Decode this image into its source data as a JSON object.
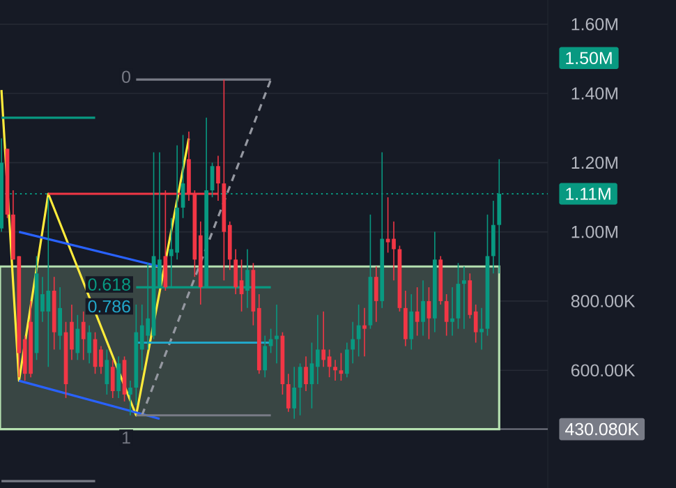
{
  "chart_data": {
    "type": "candlestick",
    "categories": [
      null,
      null,
      null,
      null,
      null,
      null,
      null,
      null,
      null,
      null,
      null,
      null,
      null,
      null,
      null,
      null,
      null,
      null,
      null,
      null,
      null,
      null,
      null,
      null,
      null,
      null,
      null,
      null,
      null,
      null,
      null,
      null,
      null,
      null,
      null,
      null,
      null,
      null,
      null,
      null,
      null,
      null,
      null,
      null,
      null,
      null,
      null,
      null,
      null,
      null,
      null,
      null,
      null,
      null,
      null,
      null,
      null,
      null,
      null,
      null,
      null,
      null,
      null,
      null,
      null,
      null,
      null,
      null,
      null,
      null,
      null,
      null,
      null,
      null,
      null,
      null,
      null,
      null,
      null,
      null,
      null,
      null,
      null,
      null,
      null,
      null
    ],
    "ohlc": [
      [
        1010000,
        1270000,
        1000000,
        1200000
      ],
      [
        1240000,
        1240000,
        1040000,
        1050000
      ],
      [
        1050000,
        1120000,
        920000,
        920000
      ],
      [
        930000,
        930000,
        580000,
        650000
      ],
      [
        690000,
        700000,
        570000,
        590000
      ],
      [
        740000,
        800000,
        580000,
        590000
      ],
      [
        650000,
        930000,
        630000,
        880000
      ],
      [
        770000,
        870000,
        740000,
        820000
      ],
      [
        770000,
        1100000,
        610000,
        830000
      ],
      [
        830000,
        870000,
        660000,
        710000
      ],
      [
        700000,
        840000,
        660000,
        780000
      ],
      [
        710000,
        740000,
        520000,
        560000
      ],
      [
        740000,
        790000,
        630000,
        660000
      ],
      [
        650000,
        760000,
        630000,
        720000
      ],
      [
        740000,
        770000,
        630000,
        690000
      ],
      [
        650000,
        730000,
        620000,
        710000
      ],
      [
        690000,
        710000,
        590000,
        610000
      ],
      [
        660000,
        670000,
        590000,
        610000
      ],
      [
        560000,
        660000,
        530000,
        630000
      ],
      [
        610000,
        630000,
        520000,
        540000
      ],
      [
        540000,
        640000,
        520000,
        620000
      ],
      [
        630000,
        640000,
        510000,
        530000
      ],
      [
        530000,
        570000,
        470000,
        550000
      ],
      [
        550000,
        790000,
        500000,
        710000
      ],
      [
        660000,
        790000,
        600000,
        730000
      ],
      [
        700000,
        910000,
        660000,
        750000
      ],
      [
        700000,
        1230000,
        690000,
        930000
      ],
      [
        840000,
        1230000,
        840000,
        920000
      ],
      [
        930000,
        1120000,
        830000,
        840000
      ],
      [
        930000,
        1040000,
        840000,
        950000
      ],
      [
        940000,
        1250000,
        920000,
        1070000
      ],
      [
        1070000,
        1280000,
        1040000,
        1140000
      ],
      [
        1210000,
        1290000,
        1090000,
        1110000
      ],
      [
        1110000,
        1120000,
        870000,
        920000
      ],
      [
        990000,
        1030000,
        790000,
        840000
      ],
      [
        840000,
        1330000,
        840000,
        1120000
      ],
      [
        1120000,
        1200000,
        1100000,
        1190000
      ],
      [
        1190000,
        1220000,
        1090000,
        1140000
      ],
      [
        1140000,
        1440000,
        860000,
        1000000
      ],
      [
        1020000,
        1030000,
        890000,
        920000
      ],
      [
        920000,
        950000,
        820000,
        840000
      ],
      [
        860000,
        920000,
        770000,
        820000
      ],
      [
        830000,
        950000,
        780000,
        890000
      ],
      [
        890000,
        910000,
        730000,
        770000
      ],
      [
        780000,
        820000,
        590000,
        600000
      ],
      [
        600000,
        700000,
        580000,
        670000
      ],
      [
        670000,
        720000,
        650000,
        690000
      ],
      [
        690000,
        790000,
        620000,
        700000
      ],
      [
        700000,
        710000,
        530000,
        560000
      ],
      [
        560000,
        590000,
        480000,
        490000
      ],
      [
        490000,
        610000,
        460000,
        550000
      ],
      [
        550000,
        620000,
        470000,
        610000
      ],
      [
        610000,
        640000,
        540000,
        560000
      ],
      [
        560000,
        680000,
        490000,
        620000
      ],
      [
        610000,
        760000,
        560000,
        660000
      ],
      [
        660000,
        770000,
        610000,
        630000
      ],
      [
        640000,
        660000,
        580000,
        610000
      ],
      [
        610000,
        630000,
        570000,
        600000
      ],
      [
        600000,
        650000,
        570000,
        590000
      ],
      [
        590000,
        680000,
        580000,
        660000
      ],
      [
        660000,
        740000,
        620000,
        690000
      ],
      [
        690000,
        790000,
        640000,
        730000
      ],
      [
        730000,
        780000,
        640000,
        720000
      ],
      [
        730000,
        1050000,
        720000,
        870000
      ],
      [
        870000,
        900000,
        740000,
        800000
      ],
      [
        800000,
        1230000,
        780000,
        980000
      ],
      [
        980000,
        1100000,
        940000,
        970000
      ],
      [
        980000,
        1030000,
        860000,
        950000
      ],
      [
        950000,
        960000,
        770000,
        780000
      ],
      [
        780000,
        830000,
        670000,
        690000
      ],
      [
        690000,
        820000,
        660000,
        770000
      ],
      [
        770000,
        840000,
        700000,
        740000
      ],
      [
        740000,
        860000,
        700000,
        800000
      ],
      [
        800000,
        840000,
        690000,
        750000
      ],
      [
        750000,
        1000000,
        710000,
        920000
      ],
      [
        920000,
        930000,
        790000,
        800000
      ],
      [
        800000,
        820000,
        700000,
        740000
      ],
      [
        740000,
        840000,
        700000,
        750000
      ],
      [
        750000,
        910000,
        720000,
        850000
      ],
      [
        850000,
        900000,
        720000,
        860000
      ],
      [
        860000,
        880000,
        750000,
        760000
      ],
      [
        770000,
        790000,
        680000,
        710000
      ],
      [
        710000,
        780000,
        660000,
        720000
      ],
      [
        720000,
        1050000,
        700000,
        930000
      ],
      [
        930000,
        1090000,
        880000,
        1020000
      ],
      [
        1020000,
        1210000,
        880000,
        1110000
      ]
    ],
    "colors": [
      "#089981",
      "#f23645",
      "#f23645",
      "#f23645",
      "#f23645",
      "#f23645",
      "#089981",
      "#089981",
      "#089981",
      "#f23645",
      "#089981",
      "#f23645",
      "#f23645",
      "#089981",
      "#f23645",
      "#089981",
      "#f23645",
      "#f23645",
      "#089981",
      "#f23645",
      "#089981",
      "#f23645",
      "#089981",
      "#089981",
      "#089981",
      "#089981",
      "#089981",
      "#089981",
      "#f23645",
      "#089981",
      "#089981",
      "#089981",
      "#f23645",
      "#f23645",
      "#f23645",
      "#089981",
      "#089981",
      "#f23645",
      "#f23645",
      "#f23645",
      "#f23645",
      "#f23645",
      "#089981",
      "#f23645",
      "#f23645",
      "#089981",
      "#089981",
      "#089981",
      "#f23645",
      "#f23645",
      "#089981",
      "#089981",
      "#f23645",
      "#089981",
      "#089981",
      "#f23645",
      "#f23645",
      "#f23645",
      "#f23645",
      "#089981",
      "#089981",
      "#089981",
      "#f23645",
      "#089981",
      "#f23645",
      "#089981",
      "#f23645",
      "#f23645",
      "#f23645",
      "#f23645",
      "#089981",
      "#f23645",
      "#089981",
      "#f23645",
      "#089981",
      "#f23645",
      "#f23645",
      "#089981",
      "#089981",
      "#089981",
      "#f23645",
      "#f23645",
      "#089981",
      "#089981",
      "#089981",
      "#089981"
    ],
    "series": [
      {
        "type": "line",
        "color": "#ffeb3b",
        "values": [
          1410000,
          null,
          null,
          570000,
          null,
          null,
          null,
          null,
          1110000,
          null,
          null,
          null,
          null,
          null,
          null,
          null,
          null,
          null,
          null,
          null,
          null,
          null,
          null,
          470000,
          null,
          null,
          null,
          null,
          null,
          null,
          null,
          null,
          1270000,
          null,
          null,
          null,
          null,
          null,
          null,
          null,
          null,
          null,
          null,
          null,
          null,
          null,
          null,
          null,
          null,
          null,
          null,
          null,
          null,
          null,
          null,
          null,
          null,
          null,
          null,
          null,
          null,
          null,
          null,
          null,
          null,
          null,
          null,
          null,
          null,
          null,
          null,
          null,
          null,
          null,
          null,
          null,
          null,
          null,
          null,
          null,
          null,
          null,
          null,
          null,
          null,
          null
        ]
      },
      {
        "type": "line",
        "color": "#2962ff",
        "values": [
          null,
          null,
          null,
          1000000,
          null,
          null,
          null,
          null,
          null,
          null,
          null,
          null,
          null,
          null,
          null,
          null,
          null,
          null,
          null,
          null,
          null,
          null,
          null,
          null,
          null,
          null,
          null,
          900000,
          null,
          null,
          null,
          null,
          null,
          null,
          null,
          null,
          null,
          null,
          null,
          null,
          null,
          null,
          null,
          null,
          null,
          null,
          null,
          null,
          null,
          null,
          null,
          null,
          null,
          null,
          null,
          null,
          null,
          null,
          null,
          null,
          null,
          null,
          null,
          null,
          null,
          null,
          null,
          null,
          null,
          null,
          null,
          null,
          null,
          null,
          null,
          null,
          null,
          null,
          null,
          null,
          null,
          null,
          null,
          null,
          null,
          null
        ]
      },
      {
        "type": "line",
        "color": "#2962ff",
        "values": [
          null,
          null,
          null,
          570000,
          null,
          null,
          null,
          null,
          null,
          null,
          null,
          null,
          null,
          null,
          null,
          null,
          null,
          null,
          null,
          null,
          null,
          null,
          null,
          null,
          null,
          null,
          null,
          460000,
          null,
          null,
          null,
          null,
          null,
          null,
          null,
          null,
          null,
          null,
          null,
          null,
          null,
          null,
          null,
          null,
          null,
          null,
          null,
          null,
          null,
          null,
          null,
          null,
          null,
          null,
          null,
          null,
          null,
          null,
          null,
          null,
          null,
          null,
          null,
          null,
          null,
          null,
          null,
          null,
          null,
          null,
          null,
          null,
          null,
          null,
          null,
          null,
          null,
          null,
          null,
          null,
          null,
          null,
          null,
          null,
          null,
          null
        ]
      },
      {
        "type": "line",
        "color": "#f23645",
        "values": [
          null,
          null,
          null,
          null,
          null,
          null,
          null,
          null,
          1110000,
          null,
          null,
          null,
          null,
          null,
          null,
          null,
          null,
          null,
          null,
          null,
          null,
          null,
          null,
          null,
          null,
          null,
          null,
          null,
          null,
          null,
          null,
          null,
          null,
          null,
          null,
          null,
          null,
          1110000,
          null,
          null,
          null,
          null,
          null,
          null,
          null,
          null,
          null,
          null,
          null,
          null,
          null,
          null,
          null,
          null,
          null,
          null,
          null,
          null,
          null,
          null,
          null,
          null,
          null,
          null,
          null,
          null,
          null,
          null,
          null,
          null,
          null,
          null,
          null,
          null,
          null,
          null,
          null,
          null,
          null,
          null,
          null,
          null,
          null,
          null,
          null,
          null
        ]
      },
      {
        "type": "line",
        "color": "#9598a1",
        "line_style": "dashed",
        "values": [
          null,
          null,
          null,
          null,
          null,
          null,
          null,
          null,
          null,
          null,
          null,
          null,
          null,
          null,
          null,
          null,
          null,
          null,
          null,
          null,
          null,
          null,
          null,
          null,
          470000,
          null,
          null,
          null,
          null,
          null,
          null,
          null,
          null,
          null,
          null,
          null,
          null,
          null,
          null,
          null,
          null,
          null,
          null,
          null,
          null,
          null,
          1440000,
          null,
          null,
          null,
          null,
          null,
          null,
          null,
          null,
          null,
          null,
          null,
          null,
          null,
          null,
          null,
          null,
          null,
          null,
          null,
          null,
          null,
          null,
          null,
          null,
          null,
          null,
          null,
          null,
          null,
          null,
          null,
          null,
          null,
          null,
          null,
          null,
          null,
          null,
          null
        ]
      },
      {
        "type": "line",
        "color": "#787b86",
        "name": "0",
        "values": [
          null,
          null,
          null,
          null,
          null,
          null,
          null,
          null,
          null,
          null,
          null,
          null,
          null,
          null,
          null,
          null,
          null,
          null,
          null,
          null,
          null,
          null,
          null,
          1440000,
          null,
          null,
          null,
          null,
          null,
          null,
          null,
          null,
          null,
          null,
          null,
          null,
          null,
          null,
          null,
          null,
          null,
          null,
          null,
          null,
          null,
          null,
          1440000,
          null,
          null,
          null,
          null,
          null,
          null,
          null,
          null,
          null,
          null,
          null,
          null,
          null,
          null,
          null,
          null,
          null,
          null,
          null,
          null,
          null,
          null,
          null,
          null,
          null,
          null,
          null,
          null,
          null,
          null,
          null,
          null,
          null,
          null,
          null,
          null,
          null,
          null,
          null
        ]
      },
      {
        "type": "line",
        "color": "#089981",
        "name": "0.618",
        "values": [
          null,
          null,
          null,
          null,
          null,
          null,
          null,
          null,
          null,
          null,
          null,
          null,
          null,
          null,
          null,
          null,
          null,
          null,
          null,
          null,
          null,
          null,
          null,
          840000,
          null,
          null,
          null,
          null,
          null,
          null,
          null,
          null,
          null,
          null,
          null,
          null,
          null,
          null,
          null,
          null,
          null,
          null,
          null,
          null,
          null,
          null,
          840000,
          null,
          null,
          null,
          null,
          null,
          null,
          null,
          null,
          null,
          null,
          null,
          null,
          null,
          null,
          null,
          null,
          null,
          null,
          null,
          null,
          null,
          null,
          null,
          null,
          null,
          null,
          null,
          null,
          null,
          null,
          null,
          null,
          null,
          null,
          null,
          null,
          null,
          null,
          null
        ]
      },
      {
        "type": "line",
        "color": "#22a6c9",
        "name": "0.786",
        "values": [
          null,
          null,
          null,
          null,
          null,
          null,
          null,
          null,
          null,
          null,
          null,
          null,
          null,
          null,
          null,
          null,
          null,
          null,
          null,
          null,
          null,
          null,
          null,
          680000,
          null,
          null,
          null,
          null,
          null,
          null,
          null,
          null,
          null,
          null,
          null,
          null,
          null,
          null,
          null,
          null,
          null,
          null,
          null,
          null,
          null,
          null,
          680000,
          null,
          null,
          null,
          null,
          null,
          null,
          null,
          null,
          null,
          null,
          null,
          null,
          null,
          null,
          null,
          null,
          null,
          null,
          null,
          null,
          null,
          null,
          null,
          null,
          null,
          null,
          null,
          null,
          null,
          null,
          null,
          null,
          null,
          null,
          null,
          null,
          null,
          null,
          null
        ]
      },
      {
        "type": "line",
        "color": "#787b86",
        "name": "1",
        "values": [
          null,
          null,
          null,
          null,
          null,
          null,
          null,
          null,
          null,
          null,
          null,
          null,
          null,
          null,
          null,
          null,
          null,
          null,
          null,
          null,
          null,
          null,
          null,
          470000,
          null,
          null,
          null,
          null,
          null,
          null,
          null,
          null,
          null,
          null,
          null,
          null,
          null,
          null,
          null,
          null,
          null,
          null,
          null,
          null,
          null,
          null,
          470000,
          null,
          null,
          null,
          null,
          null,
          null,
          null,
          null,
          null,
          null,
          null,
          null,
          null,
          null,
          null,
          null,
          null,
          null,
          null,
          null,
          null,
          null,
          null,
          null,
          null,
          null,
          null,
          null,
          null,
          null,
          null,
          null,
          null,
          null,
          null,
          null,
          null,
          null,
          null
        ]
      },
      {
        "type": "line",
        "color": "#089981",
        "values": [
          1330000,
          null,
          null,
          null,
          null,
          null,
          null,
          null,
          null,
          null,
          null,
          null,
          null,
          null,
          null,
          null,
          1330000,
          null,
          null,
          null,
          null,
          null,
          null,
          null,
          null,
          null,
          null,
          null,
          null,
          null,
          null,
          null,
          null,
          null,
          null,
          null,
          null,
          null,
          null,
          null,
          null,
          null,
          null,
          null,
          null,
          null,
          null,
          null,
          null,
          null,
          null,
          null,
          null,
          null,
          null,
          null,
          null,
          null,
          null,
          null,
          null,
          null,
          null,
          null,
          null,
          null,
          null,
          null,
          null,
          null,
          null,
          null,
          null,
          null,
          null,
          null,
          null,
          null,
          null,
          null,
          null,
          null,
          null,
          null,
          null,
          null
        ]
      },
      {
        "type": "line",
        "color": "#787b86",
        "values": [
          280000,
          null,
          null,
          null,
          null,
          null,
          null,
          null,
          null,
          null,
          null,
          null,
          null,
          null,
          null,
          null,
          280000,
          null,
          null,
          null,
          null,
          null,
          null,
          null,
          null,
          null,
          null,
          null,
          null,
          null,
          null,
          null,
          null,
          null,
          null,
          null,
          null,
          null,
          null,
          null,
          null,
          null,
          null,
          null,
          null,
          null,
          null,
          null,
          null,
          null,
          null,
          null,
          null,
          null,
          null,
          null,
          null,
          null,
          null,
          null,
          null,
          null,
          null,
          null,
          null,
          null,
          null,
          null,
          null,
          null,
          null,
          null,
          null,
          null,
          null,
          null,
          null,
          null,
          null,
          null,
          null,
          null,
          null,
          null,
          null,
          null
        ]
      }
    ],
    "bands": [
      {
        "axis": "y",
        "from": 430080,
        "to": 900000,
        "color": "#b5e0b0"
      }
    ],
    "ref_lines": [
      {
        "axis": "y",
        "value": 1110000,
        "label": "1.11M",
        "color": "#089981",
        "line_style": "dotted"
      },
      {
        "axis": "y",
        "value": 430080,
        "label": "430.080K",
        "color": "#787b86",
        "line_style": "solid"
      }
    ],
    "annotations": [
      "1.50M"
    ],
    "ylim": [
      260000,
      1670000
    ],
    "yticks": [
      {
        "value": 600000,
        "label": "600.00K"
      },
      {
        "value": 800000,
        "label": "800.00K"
      },
      {
        "value": 1000000,
        "label": "1.00M"
      },
      {
        "value": 1200000,
        "label": "1.20M"
      },
      {
        "value": 1400000,
        "label": "1.40M"
      },
      {
        "value": 1600000,
        "label": "1.60M"
      }
    ],
    "tick_labels": "y",
    "grid": "y",
    "marker": "none"
  }
}
